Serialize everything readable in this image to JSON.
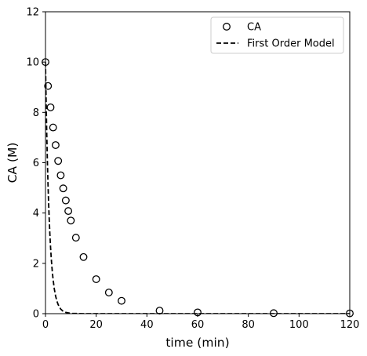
{
  "chart_data": {
    "type": "scatter",
    "xlabel": "time (min)",
    "ylabel": "CA (M)",
    "xlim": [
      0,
      120
    ],
    "ylim": [
      0,
      12
    ],
    "xticks": [
      0,
      20,
      40,
      60,
      80,
      100,
      120
    ],
    "yticks": [
      0,
      2,
      4,
      6,
      8,
      10,
      12
    ],
    "grid": false,
    "legend_position": "top-right",
    "series": [
      {
        "name": "CA",
        "kind": "scatter",
        "marker": "open-circle",
        "color": "#000000",
        "x": [
          0,
          1,
          2,
          3,
          4,
          5,
          6,
          7,
          8,
          9,
          10,
          12,
          15,
          20,
          25,
          30,
          45,
          60,
          90,
          120
        ],
        "y": [
          10.0,
          9.05,
          8.2,
          7.4,
          6.7,
          6.07,
          5.5,
          4.98,
          4.5,
          4.08,
          3.7,
          3.02,
          2.25,
          1.37,
          0.84,
          0.51,
          0.12,
          0.05,
          0.02,
          0.01
        ]
      },
      {
        "name": "First Order Model",
        "kind": "line",
        "style": "dashed",
        "color": "#000000",
        "x": [
          0,
          0.25,
          0.5,
          0.75,
          1,
          1.25,
          1.5,
          1.75,
          2,
          2.25,
          2.5,
          2.75,
          3,
          3.5,
          4,
          4.5,
          5,
          6,
          7,
          8,
          10,
          15,
          20,
          30,
          60,
          90,
          120
        ],
        "y": [
          10.0,
          8.47,
          7.17,
          6.07,
          5.14,
          4.35,
          3.69,
          3.12,
          2.64,
          2.24,
          1.9,
          1.61,
          1.36,
          0.97,
          0.7,
          0.5,
          0.36,
          0.18,
          0.09,
          0.05,
          0.01,
          0.0,
          0.0,
          0.0,
          0.0,
          0.0,
          0.0
        ]
      }
    ]
  }
}
